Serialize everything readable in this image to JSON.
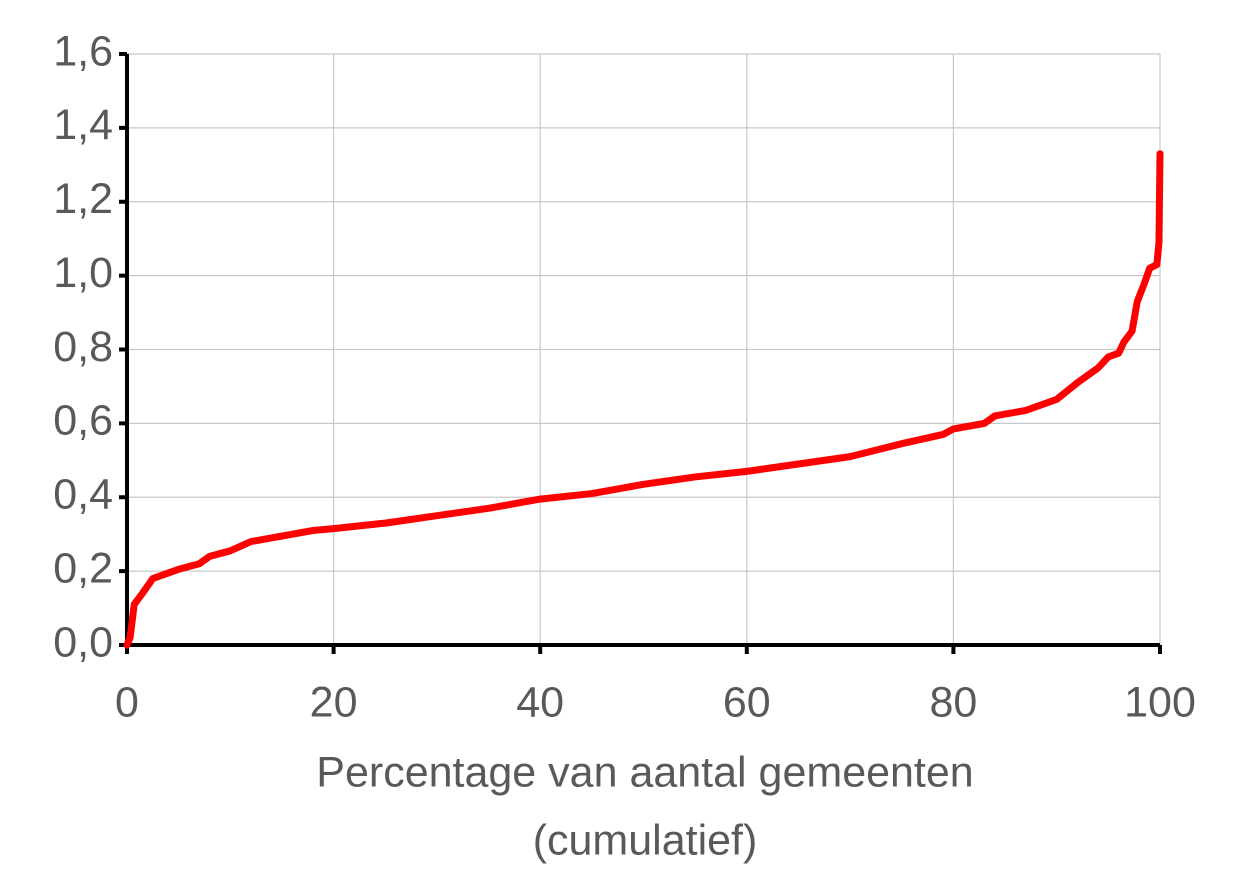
{
  "chart_data": {
    "type": "line",
    "xlabel": [
      "Percentage van aantal gemeenten",
      "(cumulatief)"
    ],
    "x": [
      0,
      0.3,
      0.7,
      1.5,
      2.5,
      3.5,
      5,
      7,
      8,
      10,
      12,
      15,
      18,
      20,
      25,
      30,
      35,
      40,
      45,
      50,
      55,
      60,
      65,
      70,
      75,
      79,
      80,
      83,
      84,
      87,
      90,
      92,
      94,
      95,
      96,
      96.5,
      97.3,
      97.8,
      98.5,
      99,
      99.7,
      99.9,
      100
    ],
    "values": [
      0,
      0.02,
      0.11,
      0.14,
      0.18,
      0.19,
      0.205,
      0.22,
      0.24,
      0.255,
      0.28,
      0.295,
      0.31,
      0.315,
      0.33,
      0.35,
      0.37,
      0.395,
      0.41,
      0.435,
      0.455,
      0.47,
      0.49,
      0.51,
      0.545,
      0.57,
      0.585,
      0.6,
      0.62,
      0.635,
      0.665,
      0.71,
      0.75,
      0.78,
      0.79,
      0.82,
      0.85,
      0.93,
      0.98,
      1.02,
      1.03,
      1.09,
      1.33
    ],
    "color": "#ff0000",
    "xlim": [
      0,
      100
    ],
    "xticks": [
      0,
      20,
      40,
      60,
      80,
      100
    ],
    "ylim": [
      0,
      1.6
    ],
    "yticks": [
      {
        "value": 0,
        "label": "0,0"
      },
      {
        "value": 0.2,
        "label": "0,2"
      },
      {
        "value": 0.4,
        "label": "0,4"
      },
      {
        "value": 0.6,
        "label": "0,6"
      },
      {
        "value": 0.8,
        "label": "0,8"
      },
      {
        "value": 1.0,
        "label": "1,0"
      },
      {
        "value": 1.2,
        "label": "1,2"
      },
      {
        "value": 1.4,
        "label": "1,4"
      },
      {
        "value": 1.6,
        "label": "1,6"
      }
    ],
    "grid": true
  }
}
